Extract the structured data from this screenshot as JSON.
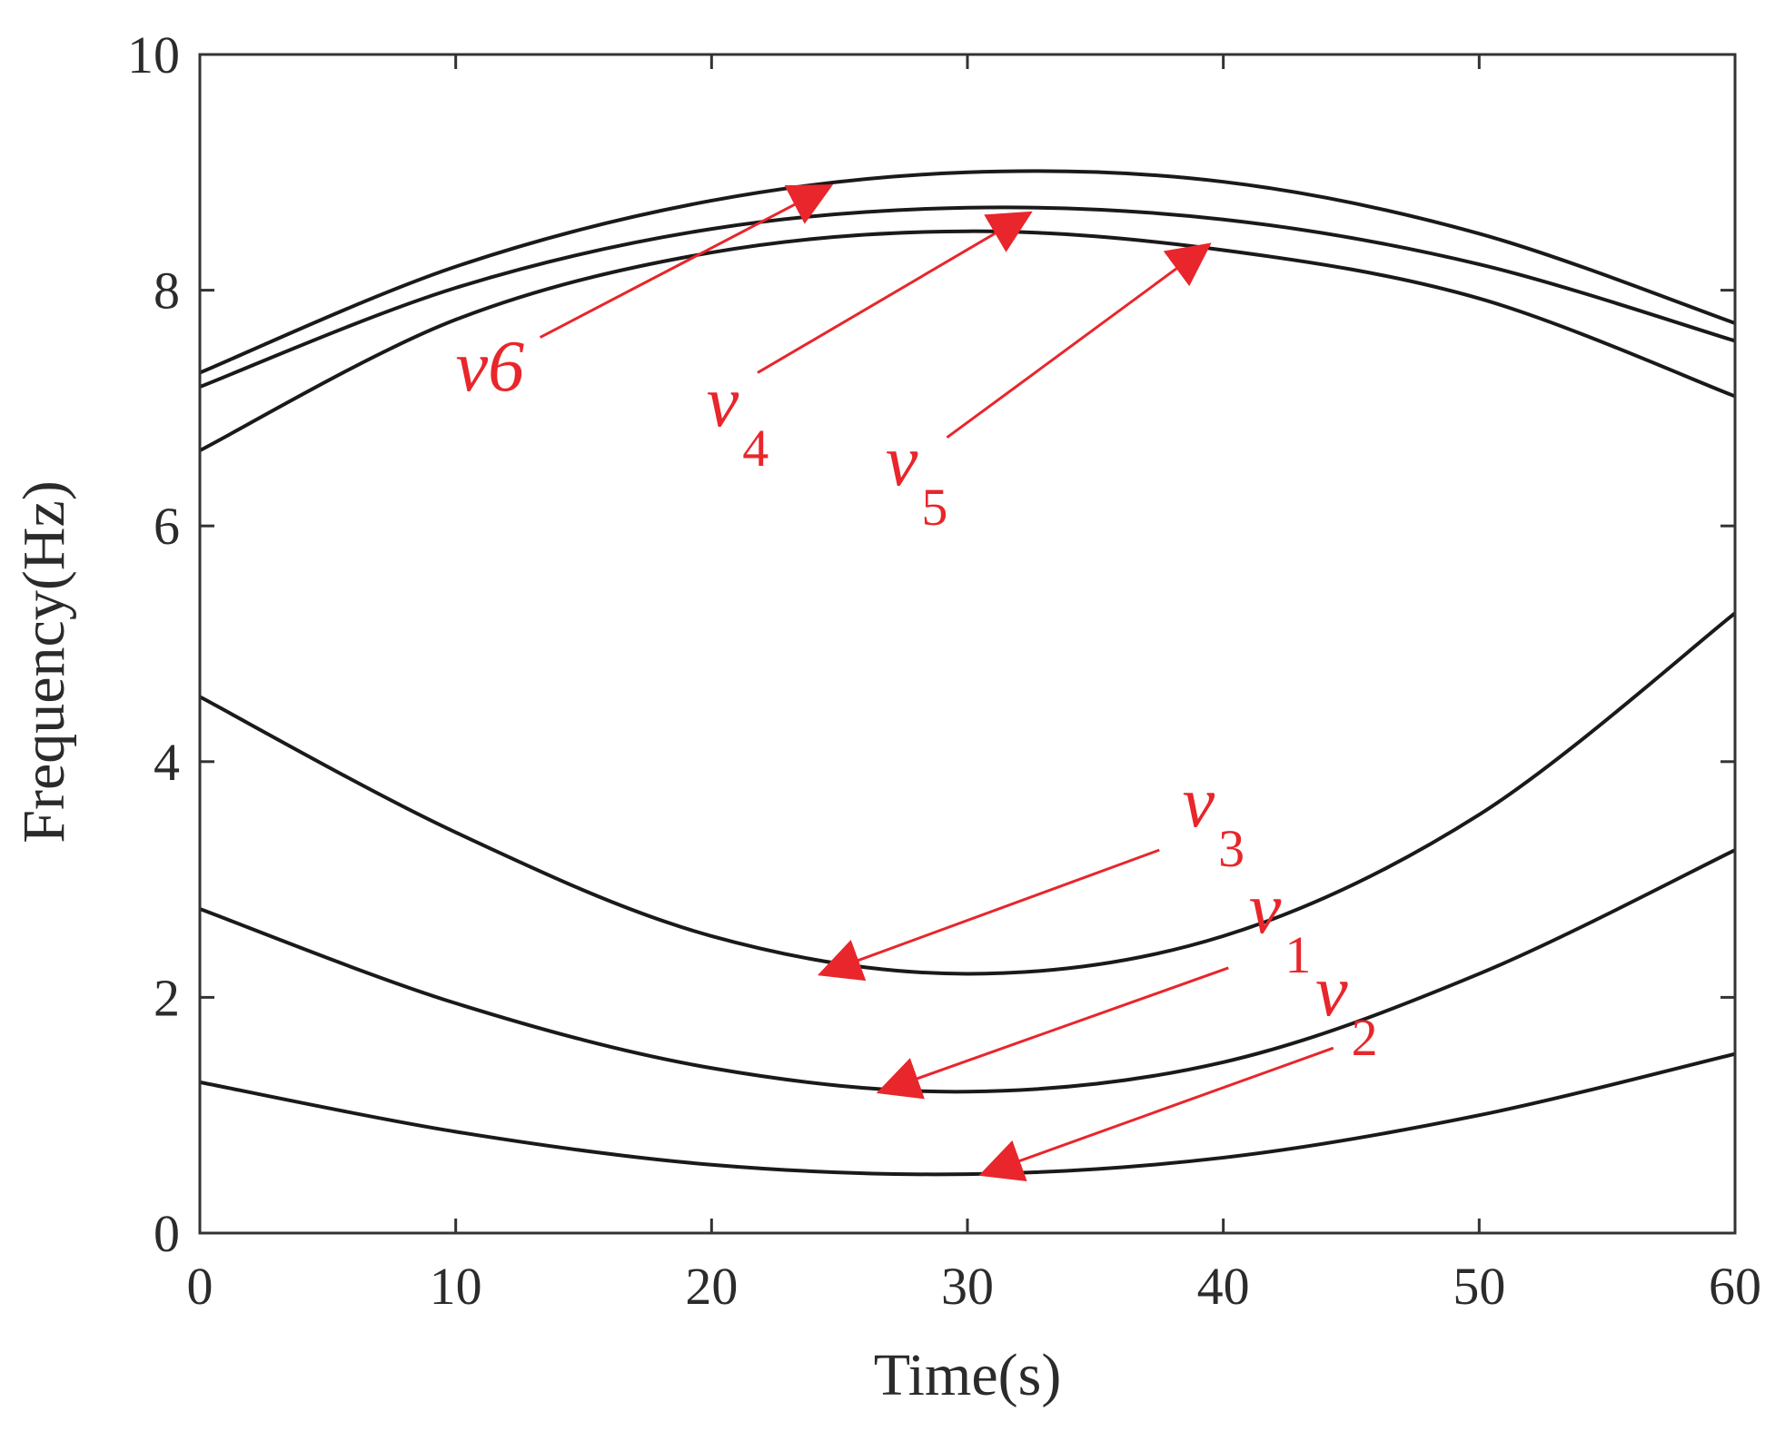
{
  "chart_data": {
    "type": "line",
    "title": "",
    "xlabel": "Time(s)",
    "ylabel": "Frequency(Hz)",
    "xlim": [
      0,
      60
    ],
    "ylim": [
      0,
      10
    ],
    "xticks": [
      0,
      10,
      20,
      30,
      40,
      50,
      60
    ],
    "yticks": [
      0,
      2,
      4,
      6,
      8,
      10
    ],
    "grid": false,
    "legend": "none",
    "colors": {
      "curve": "#1a1a1a",
      "annotation": "#e8262b",
      "axis": "#333333"
    },
    "series": [
      {
        "name": "v6",
        "x": [
          0,
          10,
          20,
          30,
          40,
          50,
          60
        ],
        "y": [
          7.3,
          8.2,
          8.76,
          9.0,
          8.92,
          8.48,
          7.72
        ]
      },
      {
        "name": "v4",
        "x": [
          0,
          10,
          20,
          30,
          40,
          50,
          60
        ],
        "y": [
          7.18,
          8.02,
          8.52,
          8.7,
          8.6,
          8.22,
          7.57
        ]
      },
      {
        "name": "v5",
        "x": [
          0,
          10,
          20,
          30,
          40,
          50,
          60
        ],
        "y": [
          6.64,
          7.75,
          8.32,
          8.5,
          8.34,
          7.93,
          7.1
        ]
      },
      {
        "name": "v3",
        "x": [
          0,
          10,
          20,
          30,
          40,
          50,
          60
        ],
        "y": [
          4.55,
          3.4,
          2.52,
          2.2,
          2.52,
          3.55,
          5.26
        ]
      },
      {
        "name": "v1",
        "x": [
          0,
          10,
          20,
          30,
          40,
          50,
          60
        ],
        "y": [
          2.75,
          1.95,
          1.4,
          1.2,
          1.45,
          2.2,
          3.25
        ]
      },
      {
        "name": "v2",
        "x": [
          0,
          10,
          20,
          30,
          40,
          50,
          60
        ],
        "y": [
          1.28,
          0.86,
          0.58,
          0.5,
          0.64,
          1.0,
          1.52
        ]
      }
    ],
    "annotations": [
      {
        "id": "v6",
        "base": "v6",
        "sub": "",
        "label_at": [
          10.0,
          7.15
        ],
        "arrow_from": [
          13.3,
          7.6
        ],
        "arrow_to": [
          24.6,
          8.88
        ]
      },
      {
        "id": "v4",
        "base": "v",
        "sub": "4",
        "label_at": [
          19.8,
          6.85
        ],
        "arrow_from": [
          21.8,
          7.3
        ],
        "arrow_to": [
          32.4,
          8.65
        ]
      },
      {
        "id": "v5",
        "base": "v",
        "sub": "5",
        "label_at": [
          26.8,
          6.35
        ],
        "arrow_from": [
          29.2,
          6.75
        ],
        "arrow_to": [
          39.4,
          8.38
        ]
      },
      {
        "id": "v3",
        "base": "v",
        "sub": "3",
        "label_at": [
          38.4,
          3.45
        ],
        "arrow_from": [
          37.5,
          3.25
        ],
        "arrow_to": [
          24.3,
          2.2
        ]
      },
      {
        "id": "v1",
        "base": "v",
        "sub": "1",
        "label_at": [
          41.0,
          2.55
        ],
        "arrow_from": [
          40.2,
          2.25
        ],
        "arrow_to": [
          26.6,
          1.2
        ]
      },
      {
        "id": "v2",
        "base": "v",
        "sub": "2",
        "label_at": [
          43.6,
          1.85
        ],
        "arrow_from": [
          44.3,
          1.57
        ],
        "arrow_to": [
          30.6,
          0.5
        ]
      }
    ]
  }
}
